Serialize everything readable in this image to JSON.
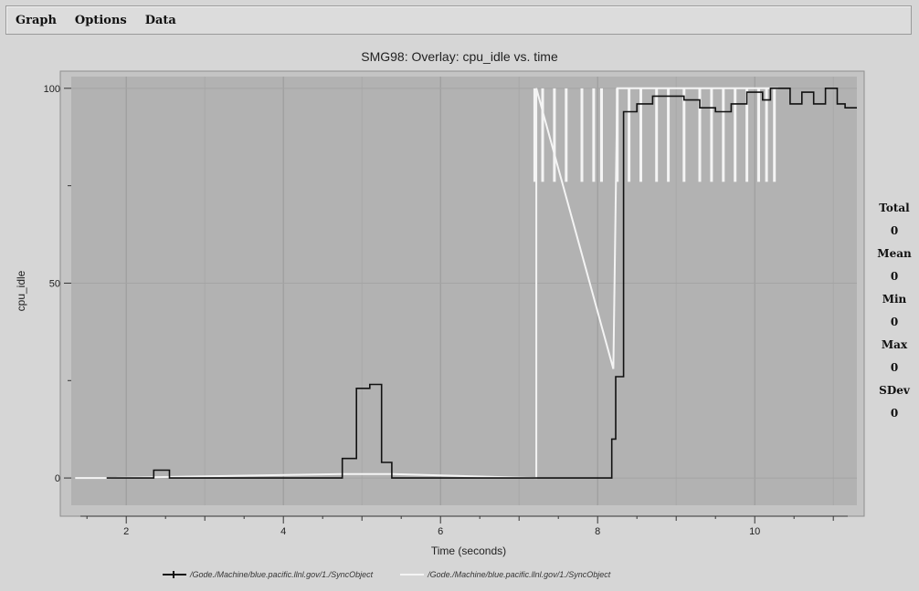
{
  "menu": [
    "Graph",
    "Options",
    "Data"
  ],
  "stats": [
    {
      "label": "Total",
      "value": "0"
    },
    {
      "label": "Mean",
      "value": "0"
    },
    {
      "label": "Min",
      "value": "0"
    },
    {
      "label": "Max",
      "value": "0"
    },
    {
      "label": "SDev",
      "value": "0"
    }
  ],
  "colors": {
    "plot_background": "#b2b2b2",
    "series_dark": "#111111",
    "series_light": "#f4f4f4"
  },
  "chart_data": {
    "type": "line",
    "title": "SMG98: Overlay: cpu_idle vs. time",
    "xlabel": "Time (seconds)",
    "ylabel": "cpu_idle",
    "xlim": [
      1.3,
      11.3
    ],
    "ylim": [
      -7,
      103
    ],
    "x_ticks": [
      2,
      4,
      6,
      8,
      10
    ],
    "y_ticks": [
      0,
      50,
      100
    ],
    "grid": true,
    "legend_position": "bottom",
    "series": [
      {
        "name": "/Gode./Machine/blue.pacific.llnl.gov/1./SyncObject",
        "style": "step",
        "points": [
          [
            1.75,
            0
          ],
          [
            2.35,
            0
          ],
          [
            2.35,
            2
          ],
          [
            2.55,
            2
          ],
          [
            2.55,
            0
          ],
          [
            4.75,
            0
          ],
          [
            4.75,
            5
          ],
          [
            4.93,
            5
          ],
          [
            4.93,
            23
          ],
          [
            5.1,
            23
          ],
          [
            5.1,
            24
          ],
          [
            5.25,
            24
          ],
          [
            5.25,
            4
          ],
          [
            5.38,
            4
          ],
          [
            5.38,
            0
          ],
          [
            8.18,
            0
          ],
          [
            8.18,
            10
          ],
          [
            8.23,
            10
          ],
          [
            8.23,
            26
          ],
          [
            8.33,
            26
          ],
          [
            8.33,
            94
          ],
          [
            8.5,
            94
          ],
          [
            8.5,
            96
          ],
          [
            8.7,
            96
          ],
          [
            8.7,
            98
          ],
          [
            9.1,
            98
          ],
          [
            9.1,
            97
          ],
          [
            9.3,
            97
          ],
          [
            9.3,
            95
          ],
          [
            9.5,
            95
          ],
          [
            9.5,
            94
          ],
          [
            9.7,
            94
          ],
          [
            9.7,
            96
          ],
          [
            9.9,
            96
          ],
          [
            9.9,
            99
          ],
          [
            10.1,
            99
          ],
          [
            10.1,
            97
          ],
          [
            10.2,
            97
          ],
          [
            10.2,
            100
          ],
          [
            10.45,
            100
          ],
          [
            10.45,
            96
          ],
          [
            10.6,
            96
          ],
          [
            10.6,
            99
          ],
          [
            10.75,
            99
          ],
          [
            10.75,
            96
          ],
          [
            10.9,
            96
          ],
          [
            10.9,
            100
          ],
          [
            11.05,
            100
          ],
          [
            11.05,
            96
          ],
          [
            11.15,
            96
          ],
          [
            11.15,
            95
          ],
          [
            11.3,
            95
          ]
        ]
      },
      {
        "name": "/Gode./Machine/blue.pacific.llnl.gov/1./SyncObject",
        "style": "vertical-lines",
        "points": [
          [
            1.35,
            0
          ],
          [
            1.75,
            0
          ],
          [
            4.75,
            1
          ],
          [
            5.38,
            1
          ],
          [
            7.22,
            0
          ],
          [
            7.22,
            100
          ],
          [
            8.2,
            28
          ],
          [
            8.25,
            100
          ],
          [
            10.3,
            100
          ]
        ],
        "vertical_lines": {
          "x": [
            7.2,
            7.3,
            7.45,
            7.6,
            7.8,
            7.95,
            8.05,
            8.25,
            8.4,
            8.55,
            8.75,
            8.9,
            9.1,
            9.3,
            9.45,
            9.6,
            9.75,
            9.9,
            10.05,
            10.15,
            10.25
          ],
          "y_low": 76,
          "y_high": 100
        }
      }
    ]
  }
}
